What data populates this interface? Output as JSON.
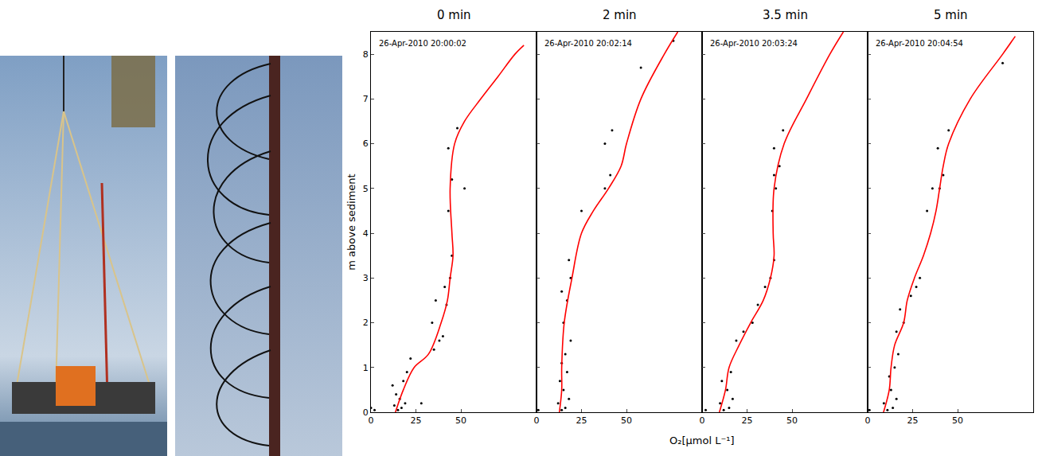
{
  "figure": {
    "xlabel": "O₂[μmol L⁻¹]",
    "ylabel": "m above sediment"
  },
  "chart_data": [
    {
      "type": "scatter",
      "title": "0 min",
      "annotations": [
        "26-Apr-2010 20:00:02"
      ],
      "xlim": [
        0,
        92
      ],
      "xticks": [
        0,
        25,
        50
      ],
      "ylim": [
        0,
        8.5
      ],
      "yticks": [
        0,
        1,
        2,
        3,
        4,
        5,
        6,
        7,
        8
      ],
      "series": [
        {
          "type": "scatter",
          "color": "#000000",
          "marker": "dot",
          "x": [
            15,
            17,
            13,
            19,
            16,
            14,
            12,
            18,
            20,
            22,
            28,
            2,
            0,
            35,
            38,
            40,
            34,
            36,
            42,
            41,
            44,
            45,
            43,
            45,
            43,
            52,
            48
          ],
          "y": [
            0.05,
            0.1,
            0.15,
            0.2,
            0.3,
            0.4,
            0.6,
            0.7,
            0.9,
            1.2,
            0.2,
            0.05,
            0.1,
            1.4,
            1.6,
            1.7,
            2.0,
            2.5,
            2.4,
            2.8,
            3.0,
            3.5,
            4.5,
            5.2,
            5.9,
            5.0,
            6.35
          ]
        },
        {
          "type": "line",
          "color": "#ff0000",
          "line_style": "solid",
          "x": [
            13.6,
            18,
            24,
            32,
            39,
            42.5,
            44,
            45.6,
            45,
            44,
            46.5,
            52,
            61,
            70.6,
            80,
            85
          ],
          "y": [
            0,
            0.5,
            1,
            1.3,
            2,
            2.5,
            3,
            3.5,
            4,
            5,
            6,
            6.5,
            7,
            7.5,
            8,
            8.2
          ]
        }
      ]
    },
    {
      "type": "scatter",
      "title": "2 min",
      "annotations": [
        "26-Apr-2010 20:02:14"
      ],
      "xlim": [
        0,
        92
      ],
      "xticks": [
        0,
        25,
        50
      ],
      "ylim": [
        0,
        8.5
      ],
      "yticks": [
        0,
        1,
        2,
        3,
        4,
        5,
        6,
        7,
        8
      ],
      "series": [
        {
          "type": "scatter",
          "color": "#000000",
          "marker": "dot",
          "x": [
            14,
            16,
            12,
            18,
            15,
            13,
            17,
            14,
            16,
            19,
            15,
            17,
            14,
            19,
            18,
            25,
            38,
            41,
            42,
            38,
            58,
            76,
            1
          ],
          "y": [
            0.05,
            0.1,
            0.2,
            0.3,
            0.5,
            0.7,
            0.9,
            1.1,
            1.3,
            1.6,
            2.0,
            2.5,
            2.7,
            3.0,
            3.4,
            4.5,
            5.0,
            5.3,
            6.3,
            6.0,
            7.7,
            8.3,
            0.05
          ]
        },
        {
          "type": "line",
          "color": "#ff0000",
          "line_style": "solid",
          "x": [
            12.7,
            14,
            14,
            15.4,
            19.7,
            25,
            31.6,
            40,
            47,
            50,
            58,
            71,
            78.5
          ],
          "y": [
            0,
            0.5,
            1,
            2,
            3,
            4,
            4.5,
            5,
            5.5,
            6,
            7,
            8,
            8.5
          ]
        }
      ]
    },
    {
      "type": "scatter",
      "title": "3.5 min",
      "annotations": [
        "26-Apr-2010 20:03:24"
      ],
      "xlim": [
        0,
        92
      ],
      "xticks": [
        0,
        25,
        50
      ],
      "ylim": [
        0,
        8.5
      ],
      "yticks": [
        0,
        1,
        2,
        3,
        4,
        5,
        6,
        7,
        8
      ],
      "series": [
        {
          "type": "scatter",
          "color": "#000000",
          "marker": "dot",
          "x": [
            12,
            15,
            10,
            17,
            14,
            11,
            16,
            19,
            23,
            28,
            31,
            35,
            38,
            40,
            39,
            41,
            40,
            43,
            40,
            45,
            2
          ],
          "y": [
            0.05,
            0.1,
            0.2,
            0.3,
            0.5,
            0.7,
            0.9,
            1.6,
            1.8,
            2.0,
            2.4,
            2.8,
            3.0,
            3.4,
            4.5,
            5.0,
            5.3,
            5.5,
            5.9,
            6.3,
            0.05
          ]
        },
        {
          "type": "line",
          "color": "#ff0000",
          "line_style": "solid",
          "x": [
            9.6,
            13,
            15,
            20.6,
            27,
            34,
            38,
            40,
            39.5,
            40,
            45.6,
            58,
            71,
            78.5
          ],
          "y": [
            0,
            0.5,
            1,
            1.5,
            2,
            2.5,
            3,
            3.5,
            4,
            5,
            6,
            7,
            8,
            8.5
          ]
        }
      ]
    },
    {
      "type": "scatter",
      "title": "5 min",
      "annotations": [
        "26-Apr-2010 20:04:54"
      ],
      "xlim": [
        0,
        92
      ],
      "xticks": [
        0,
        25,
        50
      ],
      "ylim": [
        0,
        8.5
      ],
      "yticks": [
        0,
        1,
        2,
        3,
        4,
        5,
        6,
        7,
        8
      ],
      "series": [
        {
          "type": "scatter",
          "color": "#000000",
          "marker": "dot",
          "x": [
            11,
            14,
            9,
            16,
            13,
            12,
            15,
            17,
            16,
            20,
            18,
            24,
            27,
            29,
            33,
            36,
            40,
            42,
            39,
            45,
            75,
            1
          ],
          "y": [
            0.05,
            0.1,
            0.2,
            0.3,
            0.5,
            0.8,
            1.0,
            1.3,
            1.8,
            2.0,
            2.3,
            2.6,
            2.8,
            3.0,
            4.5,
            5.0,
            5.0,
            5.3,
            5.9,
            6.3,
            7.8,
            0.05
          ]
        },
        {
          "type": "line",
          "color": "#ff0000",
          "line_style": "solid",
          "x": [
            8.8,
            12,
            13,
            15,
            20,
            22,
            26,
            31,
            35,
            38,
            40,
            42,
            45,
            57,
            75,
            82
          ],
          "y": [
            0,
            0.5,
            1,
            1.5,
            2,
            2.5,
            3,
            3.5,
            4,
            4.5,
            5,
            5.5,
            6,
            7,
            8,
            8.4
          ]
        }
      ]
    }
  ]
}
